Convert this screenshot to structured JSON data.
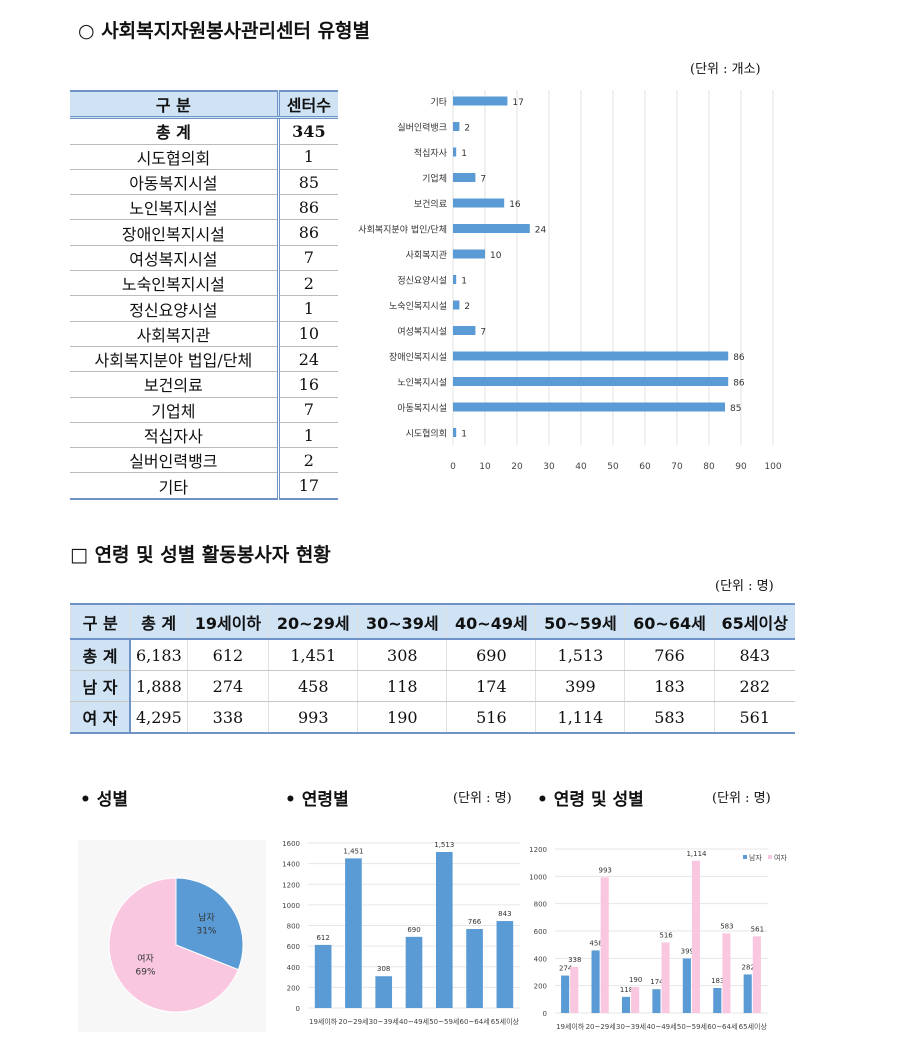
{
  "section1": {
    "title": "○ 사회복지자원봉사관리센터 유형별",
    "unit": "(단위 : 개소)",
    "table": {
      "headers": [
        "구    분",
        "센터수"
      ],
      "rows": [
        [
          "총    계",
          "345"
        ],
        [
          "시도협의회",
          "1"
        ],
        [
          "아동복지시설",
          "85"
        ],
        [
          "노인복지시설",
          "86"
        ],
        [
          "장애인복지시설",
          "86"
        ],
        [
          "여성복지시설",
          "7"
        ],
        [
          "노숙인복지시설",
          "2"
        ],
        [
          "정신요양시설",
          "1"
        ],
        [
          "사회복지관",
          "10"
        ],
        [
          "사회복지분야 법입/단체",
          "24"
        ],
        [
          "보건의료",
          "16"
        ],
        [
          "기업체",
          "7"
        ],
        [
          "적십자사",
          "1"
        ],
        [
          "실버인력뱅크",
          "2"
        ],
        [
          "기타",
          "17"
        ]
      ]
    }
  },
  "section2": {
    "title": "□ 연령 및 성별 활동봉사자 현황",
    "unit": "(단위 : 명)",
    "table": {
      "headers": [
        "구 분",
        "총 계",
        "19세이하",
        "20~29세",
        "30~39세",
        "40~49세",
        "50~59세",
        "60~64세",
        "65세이상"
      ],
      "rows": [
        [
          "총 계",
          "6,183",
          "612",
          "1,451",
          "308",
          "690",
          "1,513",
          "766",
          "843"
        ],
        [
          "남 자",
          "1,888",
          "274",
          "458",
          "118",
          "174",
          "399",
          "183",
          "282"
        ],
        [
          "여 자",
          "4,295",
          "338",
          "993",
          "190",
          "516",
          "1,114",
          "583",
          "561"
        ]
      ]
    }
  },
  "subheads": {
    "gender": "• 성별",
    "age": "• 연령별",
    "age_unit": "(단위 : 명)",
    "age_gender": "• 연령 및 성별",
    "age_gender_unit": "(단위 : 명)"
  },
  "chart_data": [
    {
      "type": "bar",
      "orientation": "horizontal",
      "categories": [
        "기타",
        "실버인력뱅크",
        "적십자사",
        "기업체",
        "보건의료",
        "사회복지분야 법인/단체",
        "사회복지관",
        "정신요양시설",
        "노숙인복지시설",
        "여성복지시설",
        "장애인복지시설",
        "노인복지시설",
        "아동복지시설",
        "시도협의회"
      ],
      "values": [
        17,
        2,
        1,
        7,
        16,
        24,
        10,
        1,
        2,
        7,
        86,
        86,
        85,
        1
      ],
      "xlim": [
        0,
        100
      ],
      "xticks": [
        0,
        10,
        20,
        30,
        40,
        50,
        60,
        70,
        80,
        90,
        100
      ],
      "grid": true,
      "color": "#5b9bd5"
    },
    {
      "type": "pie",
      "labels": [
        "남자",
        "여자"
      ],
      "values": [
        31,
        69
      ],
      "value_labels": [
        "31%",
        "69%"
      ],
      "colors": [
        "#5b9bd5",
        "#f9c8e0"
      ]
    },
    {
      "type": "bar",
      "categories": [
        "19세이하",
        "20~29세",
        "30~39세",
        "40~49세",
        "50~59세",
        "60~64세",
        "65세이상"
      ],
      "values": [
        612,
        1451,
        308,
        690,
        1513,
        766,
        843
      ],
      "value_labels": [
        "612",
        "1,451",
        "308",
        "690",
        "1,513",
        "766",
        "843"
      ],
      "ylim": [
        0,
        1600
      ],
      "yticks": [
        0,
        200,
        400,
        600,
        800,
        1000,
        1200,
        1400,
        1600
      ],
      "grid": true,
      "color": "#5b9bd5"
    },
    {
      "type": "bar",
      "categories": [
        "19세이하",
        "20~29세",
        "30~39세",
        "40~49세",
        "50~59세",
        "60~64세",
        "65세이상"
      ],
      "series": [
        {
          "name": "남자",
          "values": [
            274,
            458,
            118,
            174,
            399,
            183,
            282
          ],
          "value_labels": [
            "274",
            "458",
            "118",
            "174",
            "399",
            "183",
            "282"
          ],
          "color": "#5b9bd5"
        },
        {
          "name": "여자",
          "values": [
            338,
            993,
            190,
            516,
            1114,
            583,
            561
          ],
          "value_labels": [
            "338",
            "993",
            "190",
            "516",
            "1,114",
            "583",
            "561"
          ],
          "color": "#f9c8e0"
        }
      ],
      "ylim": [
        0,
        1200
      ],
      "yticks": [
        0,
        200,
        400,
        600,
        800,
        1000,
        1200
      ],
      "grid": true,
      "legend": "top-right"
    }
  ]
}
